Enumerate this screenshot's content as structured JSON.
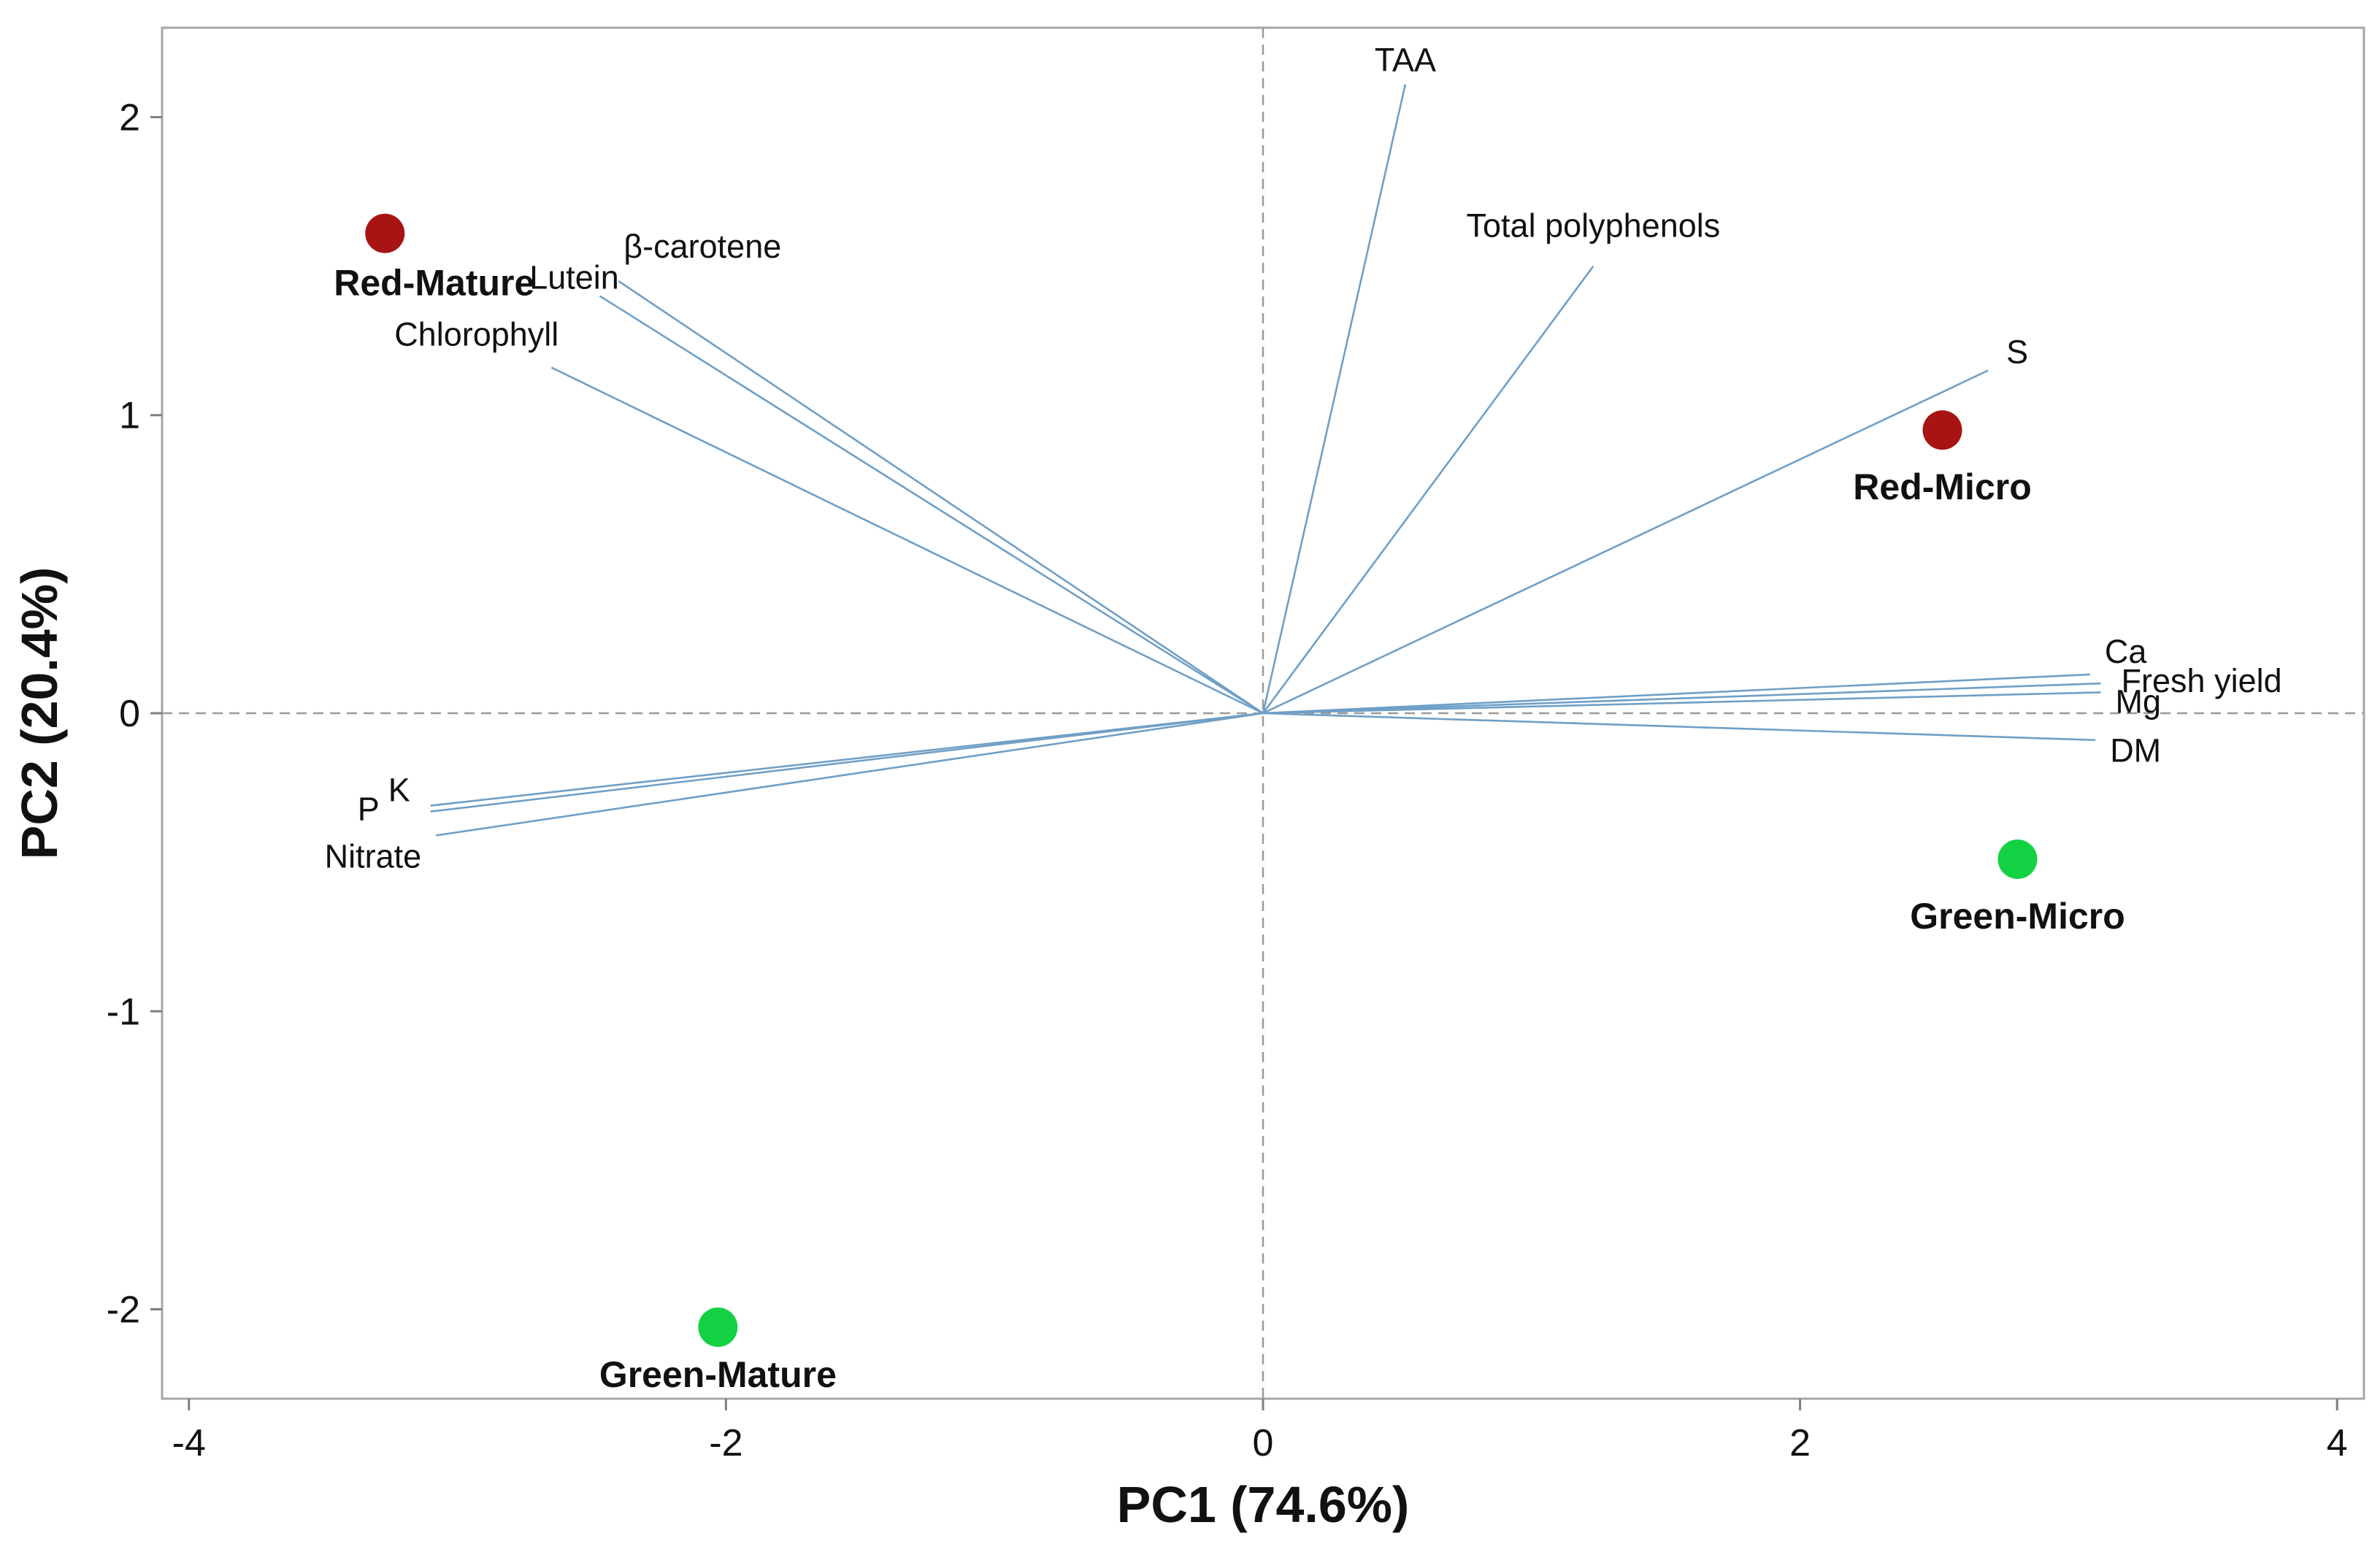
{
  "chart_data": {
    "type": "scatter",
    "subtype": "PCA biplot",
    "title": "",
    "xlabel": "PC1 (74.6%)",
    "ylabel": "PC2 (20.4%)",
    "xlim": [
      -4.1,
      4.1
    ],
    "ylim": [
      -2.3,
      2.3
    ],
    "xticks": [
      -4,
      -2,
      0,
      2,
      4
    ],
    "yticks": [
      -2,
      -1,
      0,
      1,
      2
    ],
    "xtick_labels": [
      "-4",
      "-2",
      "0",
      "2",
      "4"
    ],
    "ytick_labels": [
      "-2",
      "-1",
      "0",
      "1",
      "2"
    ],
    "reference_lines": {
      "x": 0,
      "y": 0,
      "style": "dashed"
    },
    "colors": {
      "red_group": "#a81313",
      "green_group": "#13d143",
      "vectors": "#6f9fc6",
      "frame": "#a6a6a6"
    },
    "points": [
      {
        "name": "Red-Mature",
        "x": -3.27,
        "y": 1.61,
        "color": "#a81313"
      },
      {
        "name": "Red-Micro",
        "x": 2.53,
        "y": 0.95,
        "color": "#a81313"
      },
      {
        "name": "Green-Micro",
        "x": 2.81,
        "y": -0.49,
        "color": "#13d143"
      },
      {
        "name": "Green-Mature",
        "x": -2.03,
        "y": -2.06,
        "color": "#13d143"
      }
    ],
    "loadings": [
      {
        "name": "TAA",
        "x": 0.53,
        "y": 2.11
      },
      {
        "name": "Total polyphenols",
        "x": 1.23,
        "y": 1.5
      },
      {
        "name": "S",
        "x": 2.7,
        "y": 1.15
      },
      {
        "name": "β-carotene",
        "x": -2.4,
        "y": 1.45
      },
      {
        "name": "Lutein",
        "x": -2.47,
        "y": 1.4
      },
      {
        "name": "Chlorophyll",
        "x": -2.65,
        "y": 1.16
      },
      {
        "name": "Ca",
        "x": 3.08,
        "y": 0.13
      },
      {
        "name": "Fresh yield",
        "x": 3.12,
        "y": 0.1
      },
      {
        "name": "Mg",
        "x": 3.12,
        "y": 0.07
      },
      {
        "name": "DM",
        "x": 3.1,
        "y": -0.09
      },
      {
        "name": "K",
        "x": -3.1,
        "y": -0.31
      },
      {
        "name": "P",
        "x": -3.1,
        "y": -0.33
      },
      {
        "name": "Nitrate",
        "x": -3.08,
        "y": -0.41
      }
    ]
  }
}
